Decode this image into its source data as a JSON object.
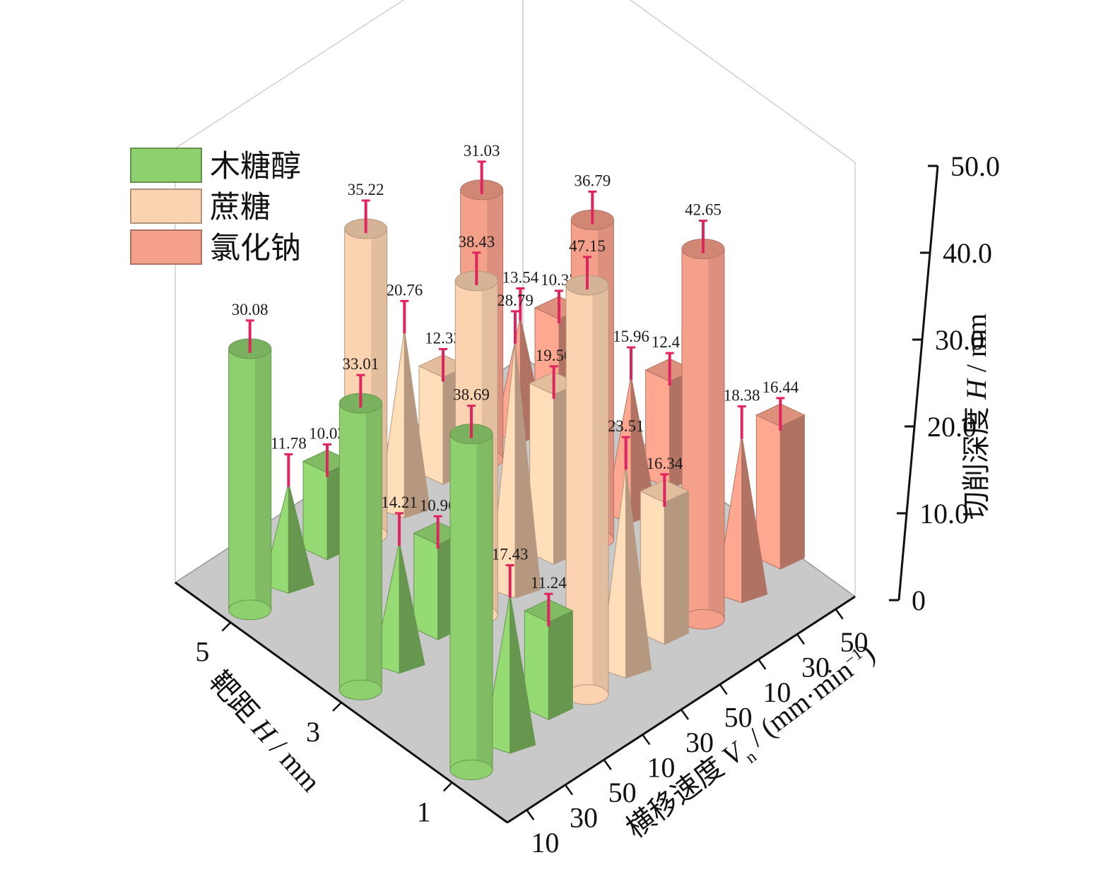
{
  "chart_data": {
    "type": "bar",
    "title": "",
    "zlabel": "切削深度 H / mm",
    "xlabel": "横移速度 V_n / (mm·min^-1)",
    "ylabel": "靶距 H / mm",
    "zlim": [
      0,
      50
    ],
    "z_ticks": [
      "0",
      "10.0",
      "20.0",
      "30.0",
      "40.0",
      "50.0"
    ],
    "x_tick_labels": [
      "10",
      "30",
      "50",
      "10",
      "30",
      "50",
      "10",
      "30",
      "50"
    ],
    "y_tick_labels": [
      "1",
      "3",
      "5"
    ],
    "legend_position": "top-left",
    "series": [
      {
        "name": "木糖醇",
        "color": "#8fd06e",
        "shape": "cylinder / pyramid / cube",
        "points": [
          {
            "feed": 10,
            "distance": 1,
            "value": 38.69
          },
          {
            "feed": 30,
            "distance": 1,
            "value": 17.43
          },
          {
            "feed": 50,
            "distance": 1,
            "value": 11.24
          },
          {
            "feed": 10,
            "distance": 3,
            "value": 33.01
          },
          {
            "feed": 30,
            "distance": 3,
            "value": 14.21
          },
          {
            "feed": 50,
            "distance": 3,
            "value": 10.96
          },
          {
            "feed": 10,
            "distance": 5,
            "value": 30.08
          },
          {
            "feed": 30,
            "distance": 5,
            "value": 11.78
          },
          {
            "feed": 50,
            "distance": 5,
            "value": 10.03
          }
        ]
      },
      {
        "name": "蔗糖",
        "color": "#fbd3b0",
        "shape": "cylinder / pyramid / cube",
        "points": [
          {
            "feed": 10,
            "distance": 1,
            "value": 47.15
          },
          {
            "feed": 30,
            "distance": 1,
            "value": 23.51
          },
          {
            "feed": 50,
            "distance": 1,
            "value": 16.34
          },
          {
            "feed": 10,
            "distance": 3,
            "value": 38.43
          },
          {
            "feed": 30,
            "distance": 3,
            "value": 28.79
          },
          {
            "feed": 50,
            "distance": 3,
            "value": 19.56
          },
          {
            "feed": 10,
            "distance": 5,
            "value": 35.22
          },
          {
            "feed": 30,
            "distance": 5,
            "value": 20.76
          },
          {
            "feed": 50,
            "distance": 5,
            "value": 12.33
          }
        ]
      },
      {
        "name": "氯化钠",
        "color": "#f5a08a",
        "shape": "cylinder / pyramid / cube",
        "points": [
          {
            "feed": 10,
            "distance": 1,
            "value": 42.65
          },
          {
            "feed": 30,
            "distance": 1,
            "value": 18.38
          },
          {
            "feed": 50,
            "distance": 1,
            "value": 16.44
          },
          {
            "feed": 10,
            "distance": 3,
            "value": 36.79
          },
          {
            "feed": 30,
            "distance": 3,
            "value": 15.96
          },
          {
            "feed": 50,
            "distance": 3,
            "value": 12.41
          },
          {
            "feed": 10,
            "distance": 5,
            "value": 31.03
          },
          {
            "feed": 30,
            "distance": 5,
            "value": 13.54
          },
          {
            "feed": 50,
            "distance": 5,
            "value": 10.37
          }
        ]
      }
    ]
  }
}
